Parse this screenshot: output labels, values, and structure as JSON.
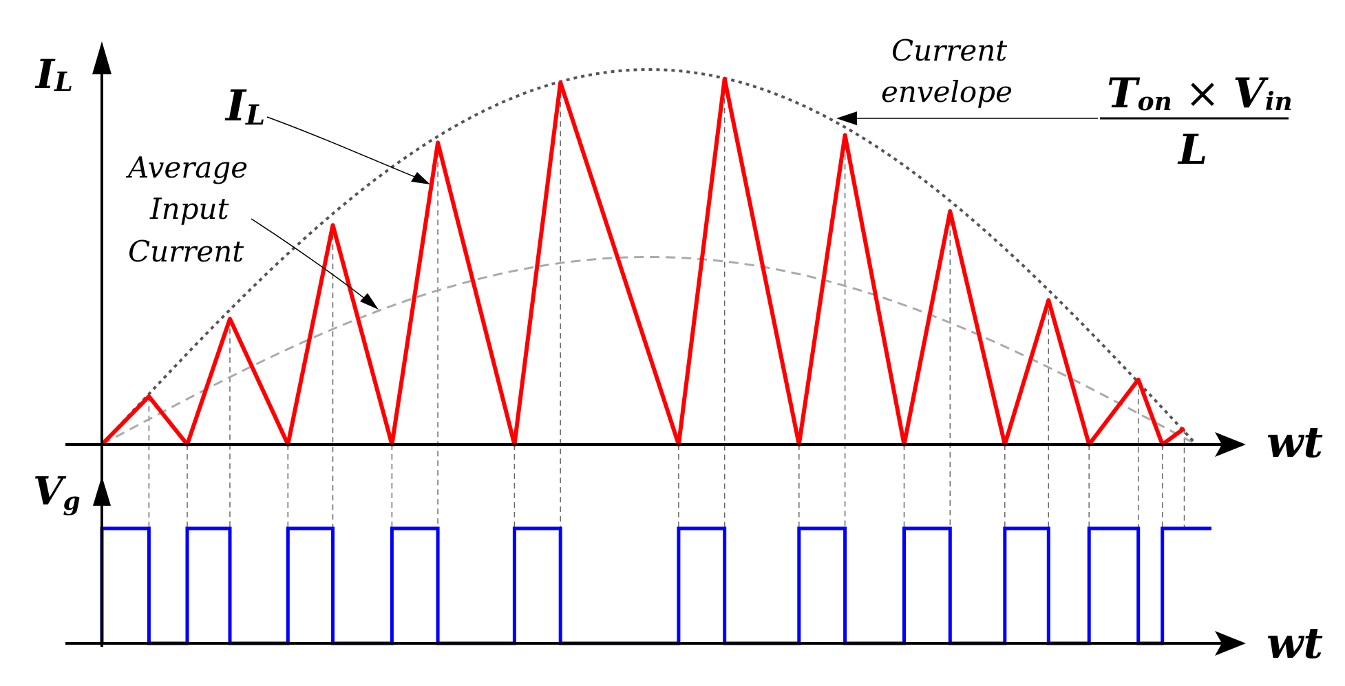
{
  "labels": {
    "il_axis": "I",
    "il_axis_sub": "L",
    "il_curve": "I",
    "il_curve_sub": "L",
    "avg_line1": "Average",
    "avg_line2": "Input",
    "avg_line3": "Current",
    "env_line1": "Current",
    "env_line2": "envelope",
    "frac_t": "T",
    "frac_t_sub": "on",
    "frac_times": " × ",
    "frac_v": "V",
    "frac_v_sub": "in",
    "frac_den": "L",
    "wt_top": "wt",
    "vg_axis": "V",
    "vg_axis_sub": "g",
    "wt_bottom": "wt"
  },
  "colors": {
    "inductor_current": "#ff0000",
    "gate_signal": "#0000ff",
    "envelope": "#555555",
    "average": "#aaaaaa"
  },
  "waveform": {
    "period_start_end": [
      0,
      1
    ],
    "inductor_current_points": [
      [
        0.0,
        0.0
      ],
      [
        0.043,
        0.128
      ],
      [
        0.078,
        0.0
      ],
      [
        0.117,
        0.335
      ],
      [
        0.17,
        0.0
      ],
      [
        0.211,
        0.585
      ],
      [
        0.265,
        0.0
      ],
      [
        0.307,
        0.805
      ],
      [
        0.377,
        0.0
      ],
      [
        0.419,
        0.965
      ],
      [
        0.527,
        0.0
      ],
      [
        0.569,
        0.975
      ],
      [
        0.637,
        0.0
      ],
      [
        0.679,
        0.825
      ],
      [
        0.733,
        0.0
      ],
      [
        0.775,
        0.622
      ],
      [
        0.825,
        0.0
      ],
      [
        0.865,
        0.385
      ],
      [
        0.902,
        0.0
      ],
      [
        0.947,
        0.173
      ],
      [
        0.969,
        0.0
      ],
      [
        0.989,
        0.043
      ]
    ],
    "gate_pulses": [
      [
        0.0,
        0.043
      ],
      [
        0.078,
        0.117
      ],
      [
        0.17,
        0.211
      ],
      [
        0.265,
        0.307
      ],
      [
        0.377,
        0.419
      ],
      [
        0.527,
        0.569
      ],
      [
        0.637,
        0.679
      ],
      [
        0.733,
        0.775
      ],
      [
        0.825,
        0.865
      ],
      [
        0.902,
        0.947
      ],
      [
        0.969,
        1.0
      ]
    ],
    "envelope_peak": 1.0,
    "average_peak": 0.5
  }
}
